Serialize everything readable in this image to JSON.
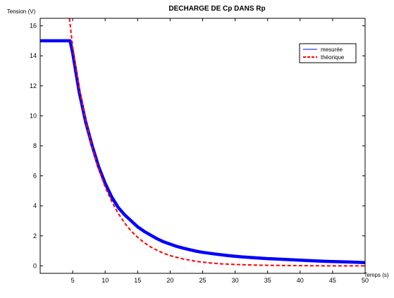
{
  "chart_data": {
    "type": "line",
    "title": "DECHARGE DE Cp DANS Rp",
    "xlabel": "Temps (s)",
    "ylabel": "Tension (V)",
    "xlim": [
      0,
      50
    ],
    "ylim": [
      -0.5,
      16.5
    ],
    "xticks": [
      5,
      10,
      15,
      20,
      25,
      30,
      35,
      40,
      45,
      50
    ],
    "yticks": [
      0,
      2,
      4,
      6,
      8,
      10,
      12,
      14,
      16
    ],
    "grid": false,
    "legend_position": "top-right",
    "series": [
      {
        "name": "mesurée",
        "color": "#0000ff",
        "style": "solid",
        "points": [
          [
            0.0,
            15.0
          ],
          [
            1.0,
            15.0
          ],
          [
            2.0,
            15.0
          ],
          [
            3.0,
            15.0
          ],
          [
            4.0,
            15.0
          ],
          [
            4.6,
            15.0
          ],
          [
            5.0,
            14.2
          ],
          [
            6.0,
            11.6
          ],
          [
            7.0,
            9.6
          ],
          [
            8.0,
            8.0
          ],
          [
            9.0,
            6.6
          ],
          [
            10.0,
            5.5
          ],
          [
            11.0,
            4.6
          ],
          [
            12.0,
            3.9
          ],
          [
            13.0,
            3.4
          ],
          [
            14.0,
            3.0
          ],
          [
            15.0,
            2.6
          ],
          [
            16.0,
            2.3
          ],
          [
            17.0,
            2.05
          ],
          [
            18.0,
            1.8
          ],
          [
            19.0,
            1.6
          ],
          [
            20.0,
            1.45
          ],
          [
            21.0,
            1.3
          ],
          [
            22.0,
            1.18
          ],
          [
            23.0,
            1.08
          ],
          [
            24.0,
            0.98
          ],
          [
            25.0,
            0.9
          ],
          [
            27.0,
            0.78
          ],
          [
            29.0,
            0.68
          ],
          [
            31.0,
            0.6
          ],
          [
            33.0,
            0.54
          ],
          [
            35.0,
            0.48
          ],
          [
            38.0,
            0.42
          ],
          [
            41.0,
            0.36
          ],
          [
            44.0,
            0.3
          ],
          [
            47.0,
            0.26
          ],
          [
            50.0,
            0.22
          ]
        ]
      },
      {
        "name": "théorique",
        "color": "#ff0000",
        "style": "dashed",
        "points": [
          [
            4.5,
            16.5
          ],
          [
            5.0,
            14.6
          ],
          [
            6.0,
            11.9
          ],
          [
            7.0,
            9.7
          ],
          [
            8.0,
            7.9
          ],
          [
            9.0,
            6.45
          ],
          [
            10.0,
            5.25
          ],
          [
            11.0,
            4.3
          ],
          [
            12.0,
            3.5
          ],
          [
            13.0,
            2.85
          ],
          [
            14.0,
            2.32
          ],
          [
            15.0,
            1.9
          ],
          [
            16.0,
            1.55
          ],
          [
            17.0,
            1.26
          ],
          [
            18.0,
            1.03
          ],
          [
            19.0,
            0.84
          ],
          [
            20.0,
            0.68
          ],
          [
            22.0,
            0.46
          ],
          [
            24.0,
            0.3
          ],
          [
            26.0,
            0.2
          ],
          [
            28.0,
            0.13
          ],
          [
            30.0,
            0.09
          ],
          [
            33.0,
            0.05
          ],
          [
            36.0,
            0.03
          ],
          [
            40.0,
            0.01
          ],
          [
            45.0,
            0.0
          ],
          [
            50.0,
            0.0
          ]
        ]
      }
    ]
  }
}
